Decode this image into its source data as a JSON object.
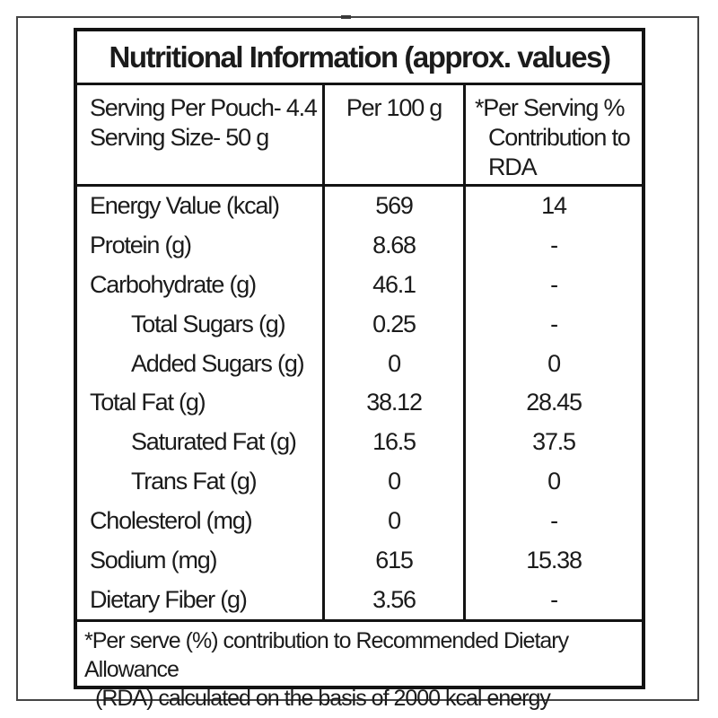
{
  "colors": {
    "background": "#ffffff",
    "frame": "#454545",
    "table_border": "#131313",
    "text": "#1b1b1b"
  },
  "title": "Nutritional Information (approx. values)",
  "header": {
    "serving_line1": "Serving Per Pouch- 4.4",
    "serving_line2": "Serving Size- 50 g",
    "per_100g": "Per 100 g",
    "rda_line1": "*Per Serving %",
    "rda_line2": "Contribution to",
    "rda_line3": "RDA"
  },
  "rows": [
    {
      "label": "Energy Value (kcal)",
      "per100": "569",
      "rda": "14",
      "indent": false
    },
    {
      "label": "Protein (g)",
      "per100": "8.68",
      "rda": "-",
      "indent": false
    },
    {
      "label": "Carbohydrate (g)",
      "per100": "46.1",
      "rda": "-",
      "indent": false
    },
    {
      "label": "Total Sugars (g)",
      "per100": "0.25",
      "rda": "-",
      "indent": true
    },
    {
      "label": "Added Sugars (g)",
      "per100": "0",
      "rda": "0",
      "indent": true
    },
    {
      "label": "Total Fat (g)",
      "per100": "38.12",
      "rda": "28.45",
      "indent": false
    },
    {
      "label": "Saturated Fat (g)",
      "per100": "16.5",
      "rda": "37.5",
      "indent": true
    },
    {
      "label": "Trans Fat (g)",
      "per100": "0",
      "rda": "0",
      "indent": true
    },
    {
      "label": "Cholesterol (mg)",
      "per100": "0",
      "rda": "-",
      "indent": false
    },
    {
      "label": "Sodium (mg)",
      "per100": "615",
      "rda": "15.38",
      "indent": false
    },
    {
      "label": "Dietary Fiber (g)",
      "per100": "3.56",
      "rda": "-",
      "indent": false
    }
  ],
  "footnote": {
    "line1": "*Per serve (%) contribution to Recommended Dietary Allowance",
    "line2": "(RDA) calculated on the basis of 2000 kcal energy"
  }
}
